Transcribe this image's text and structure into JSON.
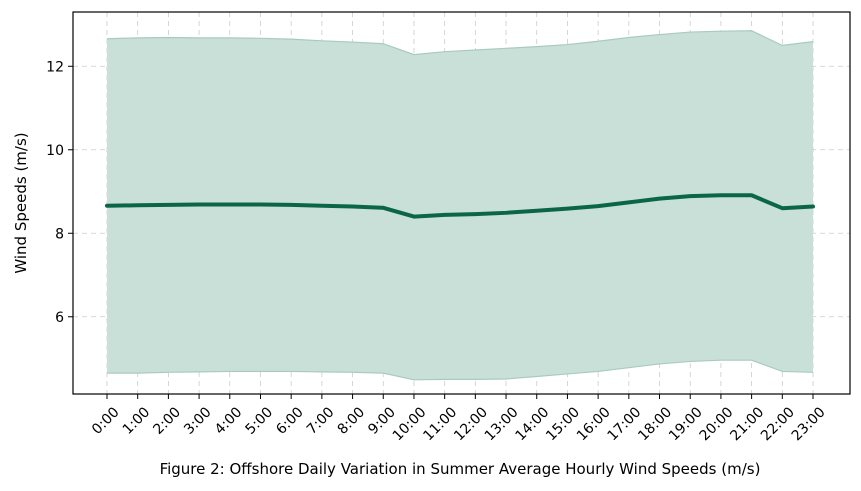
{
  "chart_data": {
    "type": "area",
    "title": "",
    "xlabel": "Figure 2: Offshore Daily Variation in Summer Average Hourly Wind Speeds (m/s)",
    "ylabel": "Wind Speeds (m/s)",
    "x": [
      "0:00",
      "1:00",
      "2:00",
      "3:00",
      "4:00",
      "5:00",
      "6:00",
      "7:00",
      "8:00",
      "9:00",
      "10:00",
      "11:00",
      "12:00",
      "13:00",
      "14:00",
      "15:00",
      "16:00",
      "17:00",
      "18:00",
      "19:00",
      "20:00",
      "21:00",
      "22:00",
      "23:00"
    ],
    "ylim": [
      4.15,
      13.3
    ],
    "yticks": [
      6,
      8,
      10,
      12
    ],
    "grid": true,
    "series": [
      {
        "kind": "line",
        "values": [
          8.66,
          8.67,
          8.68,
          8.69,
          8.69,
          8.69,
          8.68,
          8.66,
          8.64,
          8.61,
          8.4,
          8.44,
          8.46,
          8.49,
          8.54,
          8.59,
          8.65,
          8.74,
          8.83,
          8.89,
          8.91,
          8.91,
          8.6,
          8.64
        ],
        "color": "#0b6648"
      },
      {
        "kind": "band",
        "upper": [
          12.66,
          12.68,
          12.69,
          12.68,
          12.68,
          12.67,
          12.65,
          12.61,
          12.58,
          12.54,
          12.28,
          12.35,
          12.39,
          12.43,
          12.47,
          12.52,
          12.6,
          12.69,
          12.76,
          12.82,
          12.84,
          12.85,
          12.5,
          12.59
        ],
        "lower": [
          4.65,
          4.65,
          4.67,
          4.68,
          4.69,
          4.69,
          4.69,
          4.68,
          4.67,
          4.65,
          4.49,
          4.5,
          4.5,
          4.51,
          4.57,
          4.63,
          4.69,
          4.78,
          4.87,
          4.93,
          4.96,
          4.96,
          4.69,
          4.67
        ],
        "color": "#c9e0d8"
      }
    ]
  }
}
